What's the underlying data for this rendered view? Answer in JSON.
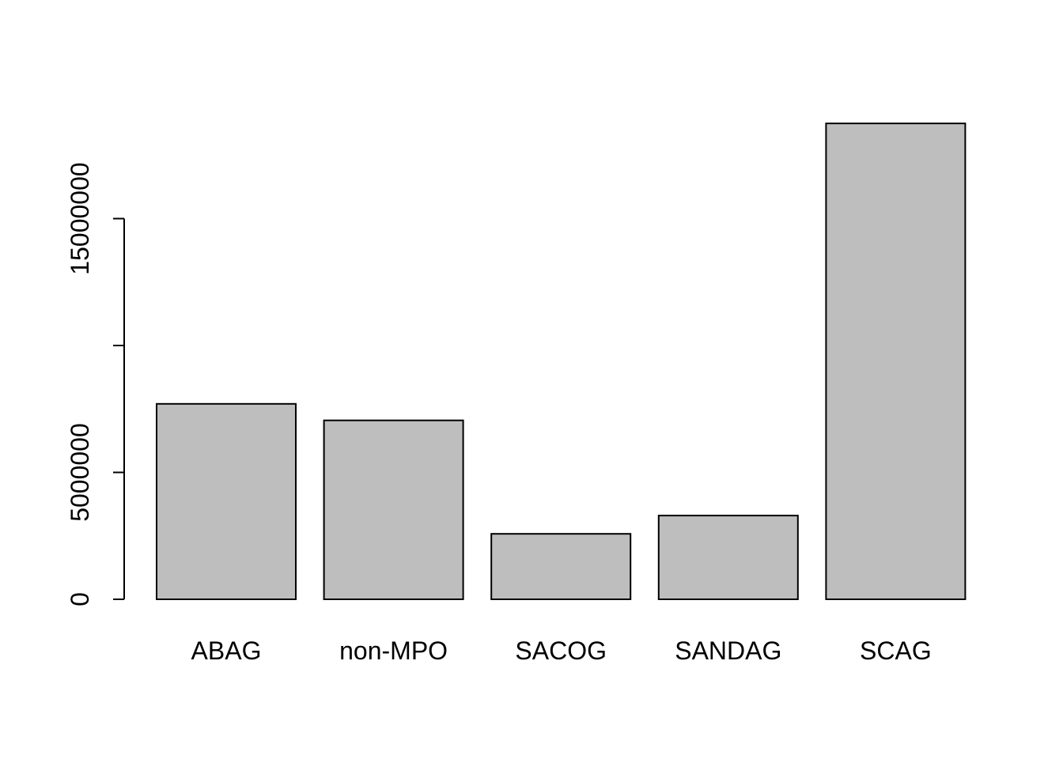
{
  "chart_data": {
    "type": "bar",
    "title": "",
    "xlabel": "",
    "ylabel": "",
    "categories": [
      "ABAG",
      "non-MPO",
      "SACOG",
      "SANDAG",
      "SCAG"
    ],
    "values": [
      7700000,
      7050000,
      2580000,
      3300000,
      18750000
    ],
    "ylim": [
      0,
      20000000
    ],
    "y_ticks": [
      0,
      5000000,
      10000000,
      15000000
    ],
    "y_tick_labels": [
      "0",
      "5000000",
      "",
      "15000000"
    ],
    "bar_color": "#bebebe",
    "bar_border_color": "#000000",
    "grid": false,
    "legend": "none"
  }
}
